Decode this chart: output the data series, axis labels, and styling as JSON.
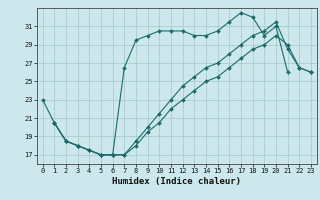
{
  "xlabel": "Humidex (Indice chaleur)",
  "bg_color": "#cce8ec",
  "grid_color": "#aacccc",
  "line_color": "#1a6b6b",
  "xlim": [
    -0.5,
    23.5
  ],
  "ylim": [
    16.0,
    33.0
  ],
  "xticks": [
    0,
    1,
    2,
    3,
    4,
    5,
    6,
    7,
    8,
    9,
    10,
    11,
    12,
    13,
    14,
    15,
    16,
    17,
    18,
    19,
    20,
    21,
    22,
    23
  ],
  "yticks": [
    17,
    19,
    21,
    23,
    25,
    27,
    29,
    31
  ],
  "line1_x": [
    0,
    1,
    2,
    3,
    4,
    5,
    6,
    7,
    8,
    9,
    10,
    11,
    12,
    13,
    14,
    15,
    16,
    17,
    18,
    19,
    20,
    21
  ],
  "line1_y": [
    23,
    20.5,
    18.5,
    18,
    17.5,
    17,
    17,
    26.5,
    29.5,
    30,
    30.5,
    30.5,
    30.5,
    30,
    30,
    30.5,
    31.5,
    32.5,
    32,
    30,
    31,
    26
  ],
  "line2_x": [
    1,
    2,
    3,
    4,
    5,
    6,
    7,
    8,
    9,
    10,
    11,
    12,
    13,
    14,
    15,
    16,
    17,
    18,
    19,
    20,
    21,
    22,
    23
  ],
  "line2_y": [
    20.5,
    18.5,
    18,
    17.5,
    17,
    17,
    17,
    18.5,
    20,
    21.5,
    23,
    24.5,
    25.5,
    26.5,
    27,
    28,
    29,
    30,
    30.5,
    31.5,
    28.5,
    26.5,
    26
  ],
  "line3_x": [
    1,
    2,
    3,
    4,
    5,
    6,
    7,
    8,
    9,
    10,
    11,
    12,
    13,
    14,
    15,
    16,
    17,
    18,
    19,
    20,
    21,
    22,
    23
  ],
  "line3_y": [
    20.5,
    18.5,
    18,
    17.5,
    17,
    17,
    17,
    18,
    19.5,
    20.5,
    22,
    23,
    24,
    25,
    25.5,
    26.5,
    27.5,
    28.5,
    29,
    30,
    29,
    26.5,
    26
  ]
}
